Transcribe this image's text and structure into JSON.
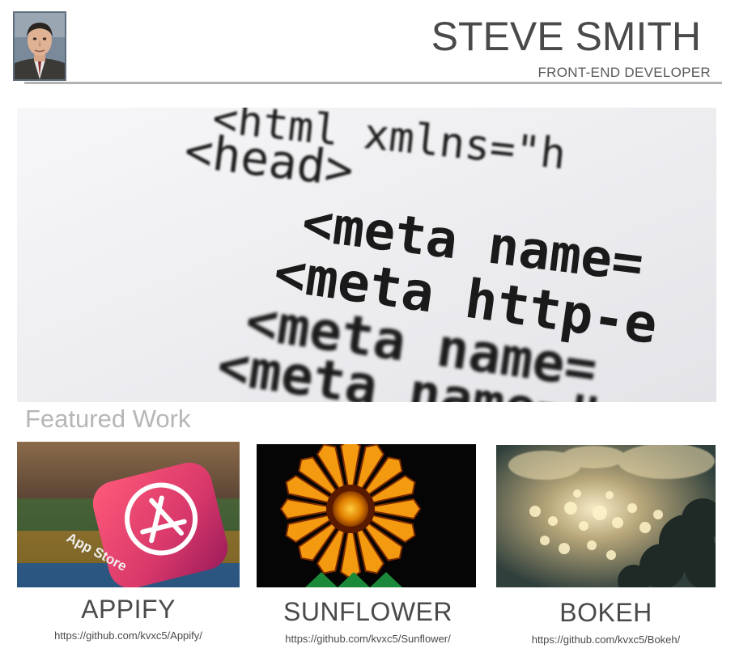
{
  "header": {
    "name": "STEVE SMITH",
    "role": "FRONT-END DEVELOPER",
    "avatar_icon": "profile-photo"
  },
  "hero": {
    "code_lines": [
      "<html xmlns=\"h",
      "<head>",
      "<meta name=",
      "<meta http-e",
      "<meta name=",
      "<meta name=\""
    ]
  },
  "featured": {
    "heading": "Featured Work",
    "projects": [
      {
        "title": "APPIFY",
        "link": "https://github.com/kvxc5/Appify/"
      },
      {
        "title": "SUNFLOWER",
        "link": "https://github.com/kvxc5/Sunflower/"
      },
      {
        "title": "BOKEH",
        "link": "https://github.com/kvxc5/Bokeh/"
      }
    ]
  },
  "colors": {
    "text": "#4a4a4a",
    "rule": "#b3b3b3",
    "featured": "#b6b6b6"
  }
}
